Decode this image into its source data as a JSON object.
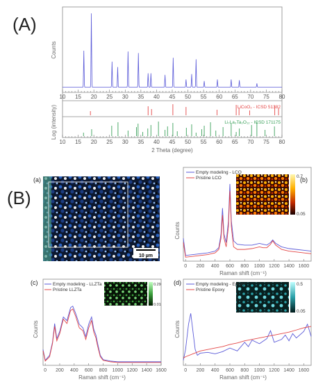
{
  "labels": {
    "A": "(A)",
    "B": "(B)"
  },
  "colors": {
    "blue": "#5a5ad8",
    "red": "#e34545",
    "green": "#3aa05a",
    "gray": "#8c8c8c"
  },
  "chart_data": [
    {
      "id": "xrd",
      "type": "line",
      "xlabel": "2 Theta (degree)",
      "ylabel_top": "Counts",
      "ylabel_bottom": "Log (intensity)",
      "xlim": [
        10,
        80
      ],
      "xticks": [
        "10",
        "15",
        "20",
        "25",
        "30",
        "35",
        "40",
        "45",
        "50",
        "55",
        "60",
        "65",
        "70",
        "75",
        "80"
      ],
      "ref_series": [
        {
          "name": "LiCoO₂ - ICSD 51382",
          "color": "#e34545"
        },
        {
          "name": "Li₇La₃Ta₂O₁₂ - ICSD 171175",
          "color": "#3aa05a"
        }
      ],
      "peaks": [
        {
          "x": 16.8,
          "y": 0.47
        },
        {
          "x": 19.2,
          "y": 0.95
        },
        {
          "x": 25.8,
          "y": 0.33
        },
        {
          "x": 27.6,
          "y": 0.26
        },
        {
          "x": 30.9,
          "y": 0.46
        },
        {
          "x": 34.2,
          "y": 0.44
        },
        {
          "x": 37.3,
          "y": 0.18
        },
        {
          "x": 38.2,
          "y": 0.18
        },
        {
          "x": 42.7,
          "y": 0.16
        },
        {
          "x": 45.3,
          "y": 0.38
        },
        {
          "x": 49.4,
          "y": 0.1
        },
        {
          "x": 51.2,
          "y": 0.17
        },
        {
          "x": 52.6,
          "y": 0.36
        },
        {
          "x": 55.2,
          "y": 0.08
        },
        {
          "x": 59.4,
          "y": 0.1
        },
        {
          "x": 63.8,
          "y": 0.1
        },
        {
          "x": 66.4,
          "y": 0.09
        },
        {
          "x": 72.0,
          "y": 0.05
        }
      ],
      "lco_lines": [
        18.9,
        37.3,
        38.4,
        45.2,
        49.4,
        59.3,
        65.4,
        66.3,
        69.7,
        77.7,
        78.9
      ],
      "llzta_lines": [
        16.7,
        19.3,
        25.7,
        27.7,
        30.9,
        33.6,
        34.1,
        35.6,
        37.2,
        38.2,
        40.6,
        42.7,
        43.5,
        45.2,
        46.6,
        49.5,
        51.2,
        52.6,
        54.4,
        55.2,
        57.2,
        58.9,
        61.2,
        63.8,
        65.4,
        66.4,
        70.3,
        72.0,
        74.6,
        77.6
      ]
    },
    {
      "id": "b-map",
      "tag": "(a)",
      "scalebar": "10 µm"
    },
    {
      "id": "b-lco",
      "tag": "(b)",
      "type": "line",
      "xlabel": "Raman shift (cm⁻¹)",
      "ylabel": "Counts",
      "xticks": [
        "0",
        "200",
        "400",
        "600",
        "800",
        "1000",
        "1200",
        "1400",
        "1600"
      ],
      "xlim": [
        -30,
        1700
      ],
      "colorbar": [
        "0.7",
        "0.05"
      ],
      "series": [
        {
          "name": "Empty modeling - LCO",
          "color": "#5a5ad8",
          "x": [
            -30,
            0,
            100,
            200,
            300,
            400,
            450,
            480,
            500,
            520,
            550,
            580,
            600,
            620,
            650,
            700,
            800,
            900,
            1000,
            1050,
            1100,
            1150,
            1180,
            1220,
            1300,
            1400,
            1500,
            1600,
            1700
          ],
          "y": [
            0.25,
            0.05,
            0.06,
            0.07,
            0.08,
            0.1,
            0.14,
            0.3,
            0.6,
            0.3,
            0.2,
            0.45,
            0.88,
            0.45,
            0.22,
            0.18,
            0.17,
            0.17,
            0.19,
            0.18,
            0.17,
            0.2,
            0.23,
            0.19,
            0.15,
            0.13,
            0.12,
            0.11,
            0.1
          ]
        },
        {
          "name": "Pristine LCO",
          "color": "#e34545",
          "x": [
            -30,
            0,
            100,
            200,
            300,
            400,
            450,
            480,
            500,
            520,
            550,
            580,
            600,
            620,
            650,
            700,
            800,
            900,
            1000,
            1050,
            1100,
            1150,
            1180,
            1220,
            1300,
            1400,
            1500,
            1600,
            1700
          ],
          "y": [
            0.2,
            0.03,
            0.04,
            0.05,
            0.06,
            0.08,
            0.12,
            0.25,
            0.52,
            0.25,
            0.15,
            0.38,
            0.8,
            0.38,
            0.15,
            0.12,
            0.12,
            0.13,
            0.15,
            0.14,
            0.14,
            0.18,
            0.22,
            0.17,
            0.12,
            0.1,
            0.09,
            0.08,
            0.07
          ]
        }
      ]
    },
    {
      "id": "b-llzta",
      "tag": "(c)",
      "type": "line",
      "xlabel": "Raman shift (cm⁻¹)",
      "ylabel": "Counts",
      "xticks": [
        "0",
        "200",
        "400",
        "600",
        "800",
        "1000",
        "1200",
        "1400",
        "1600"
      ],
      "xlim": [
        -30,
        1600
      ],
      "colorbar": [
        "0.29",
        "0.01"
      ],
      "series": [
        {
          "name": "Empty modeling - LLZTa",
          "color": "#5a5ad8",
          "x": [
            -30,
            0,
            60,
            100,
            130,
            160,
            200,
            250,
            300,
            350,
            380,
            420,
            470,
            520,
            560,
            600,
            640,
            670,
            700,
            720,
            760,
            800,
            900,
            1000,
            1200,
            1400,
            1600
          ],
          "y": [
            0.2,
            0.05,
            0.12,
            0.3,
            0.56,
            0.35,
            0.45,
            0.65,
            0.6,
            0.78,
            0.8,
            0.7,
            0.55,
            0.5,
            0.38,
            0.55,
            0.65,
            0.48,
            0.4,
            0.3,
            0.12,
            0.06,
            0.04,
            0.03,
            0.03,
            0.03,
            0.03
          ]
        },
        {
          "name": "Pristine LLZTa",
          "color": "#e34545",
          "x": [
            -30,
            0,
            60,
            100,
            130,
            160,
            200,
            250,
            300,
            350,
            380,
            420,
            470,
            520,
            560,
            600,
            640,
            670,
            700,
            720,
            760,
            800,
            900,
            1000,
            1200,
            1400,
            1600
          ],
          "y": [
            0.18,
            0.04,
            0.1,
            0.28,
            0.52,
            0.32,
            0.42,
            0.62,
            0.56,
            0.74,
            0.76,
            0.66,
            0.5,
            0.46,
            0.34,
            0.5,
            0.6,
            0.44,
            0.36,
            0.26,
            0.1,
            0.05,
            0.03,
            0.02,
            0.02,
            0.02,
            0.02
          ]
        }
      ]
    },
    {
      "id": "b-epoxy",
      "tag": "(d)",
      "type": "line",
      "xlabel": "Raman shift (cm⁻¹)",
      "ylabel": "Counts",
      "xticks": [
        "0",
        "200",
        "400",
        "600",
        "800",
        "1000",
        "1200",
        "1400",
        "1600"
      ],
      "xlim": [
        -30,
        1700
      ],
      "colorbar": [
        "0.5",
        "0.05"
      ],
      "series": [
        {
          "name": "Empty modeling - Epoxy",
          "color": "#5a5ad8",
          "x": [
            -30,
            0,
            40,
            70,
            100,
            130,
            160,
            200,
            300,
            400,
            500,
            600,
            700,
            800,
            850,
            900,
            1000,
            1100,
            1150,
            1200,
            1300,
            1350,
            1400,
            1450,
            1500,
            1600,
            1650,
            1700
          ],
          "y": [
            0.05,
            0.2,
            0.55,
            0.7,
            0.45,
            0.2,
            0.12,
            0.15,
            0.16,
            0.14,
            0.17,
            0.22,
            0.18,
            0.3,
            0.24,
            0.33,
            0.28,
            0.35,
            0.46,
            0.3,
            0.34,
            0.4,
            0.32,
            0.42,
            0.36,
            0.45,
            0.55,
            0.38
          ]
        },
        {
          "name": "Pristine Epoxy",
          "color": "#e34545",
          "x": [
            -30,
            0,
            100,
            200,
            300,
            400,
            500,
            600,
            700,
            800,
            900,
            1000,
            1100,
            1200,
            1300,
            1400,
            1500,
            1600,
            1700
          ],
          "y": [
            0.08,
            0.1,
            0.14,
            0.18,
            0.2,
            0.22,
            0.24,
            0.27,
            0.29,
            0.32,
            0.34,
            0.36,
            0.38,
            0.4,
            0.42,
            0.44,
            0.47,
            0.5,
            0.52
          ]
        }
      ]
    }
  ]
}
